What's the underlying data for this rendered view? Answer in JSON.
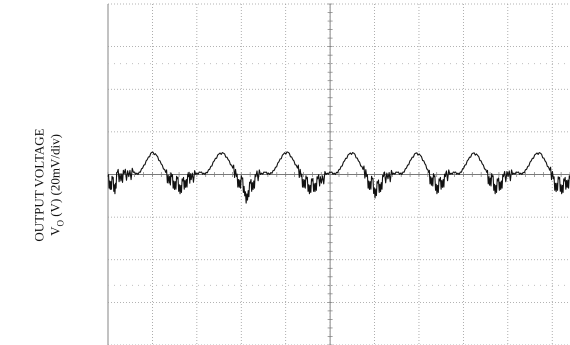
{
  "chart_data": {
    "type": "line",
    "title": "",
    "ylabel_line1": "OUTPUT VOLTAGE",
    "ylabel_line2": "V",
    "ylabel_line2_sub": "O",
    "ylabel_line2_rest": " (V) (20mV/div)",
    "xlabel": "",
    "grid": true,
    "x_divisions": 10,
    "y_divisions": 8,
    "x_unit": "div",
    "y_unit": "div",
    "ylim": [
      -4,
      4
    ],
    "xlim": [
      0,
      10
    ],
    "series": [
      {
        "values_div": [
          [
            0.0,
            -0.05
          ],
          [
            0.05,
            -0.35
          ],
          [
            0.1,
            -0.1
          ],
          [
            0.15,
            -0.45
          ],
          [
            0.2,
            0.05
          ],
          [
            0.28,
            -0.15
          ],
          [
            0.35,
            0.02
          ],
          [
            0.45,
            -0.05
          ],
          [
            0.55,
            0.05
          ],
          [
            0.65,
            0.0
          ],
          [
            0.75,
            0.15
          ],
          [
            0.85,
            0.35
          ],
          [
            0.95,
            0.52
          ],
          [
            1.05,
            0.45
          ],
          [
            1.15,
            0.25
          ],
          [
            1.25,
            0.05
          ],
          [
            1.32,
            -0.2
          ],
          [
            1.38,
            -0.05
          ],
          [
            1.44,
            -0.35
          ],
          [
            1.5,
            -0.1
          ],
          [
            1.56,
            -0.45
          ],
          [
            1.62,
            -0.15
          ],
          [
            1.68,
            -0.3
          ],
          [
            1.74,
            -0.05
          ],
          [
            1.8,
            -0.12
          ],
          [
            1.9,
            0.0
          ],
          [
            2.0,
            0.05
          ],
          [
            2.1,
            0.0
          ],
          [
            2.2,
            0.12
          ],
          [
            2.3,
            0.32
          ],
          [
            2.4,
            0.48
          ],
          [
            2.5,
            0.5
          ],
          [
            2.6,
            0.35
          ],
          [
            2.7,
            0.15
          ],
          [
            2.78,
            -0.05
          ],
          [
            2.84,
            -0.3
          ],
          [
            2.9,
            -0.1
          ],
          [
            2.96,
            -0.5
          ],
          [
            3.02,
            -0.6
          ],
          [
            3.08,
            -0.2
          ],
          [
            3.14,
            -0.35
          ],
          [
            3.2,
            -0.05
          ],
          [
            3.3,
            0.0
          ],
          [
            3.4,
            0.05
          ],
          [
            3.5,
            0.0
          ],
          [
            3.6,
            0.1
          ],
          [
            3.7,
            0.3
          ],
          [
            3.8,
            0.48
          ],
          [
            3.9,
            0.52
          ],
          [
            4.0,
            0.35
          ],
          [
            4.1,
            0.15
          ],
          [
            4.18,
            -0.05
          ],
          [
            4.24,
            -0.3
          ],
          [
            4.3,
            -0.1
          ],
          [
            4.36,
            -0.45
          ],
          [
            4.42,
            -0.15
          ],
          [
            4.48,
            -0.4
          ],
          [
            4.54,
            -0.1
          ],
          [
            4.62,
            -0.2
          ],
          [
            4.72,
            0.0
          ],
          [
            4.82,
            0.05
          ],
          [
            4.92,
            0.0
          ],
          [
            5.02,
            0.12
          ],
          [
            5.12,
            0.32
          ],
          [
            5.22,
            0.48
          ],
          [
            5.32,
            0.5
          ],
          [
            5.42,
            0.32
          ],
          [
            5.52,
            0.12
          ],
          [
            5.6,
            -0.05
          ],
          [
            5.66,
            -0.35
          ],
          [
            5.72,
            -0.1
          ],
          [
            5.78,
            -0.55
          ],
          [
            5.84,
            -0.2
          ],
          [
            5.9,
            -0.4
          ],
          [
            5.96,
            -0.05
          ],
          [
            6.06,
            -0.1
          ],
          [
            6.16,
            0.0
          ],
          [
            6.26,
            0.05
          ],
          [
            6.36,
            0.0
          ],
          [
            6.46,
            0.15
          ],
          [
            6.56,
            0.35
          ],
          [
            6.66,
            0.5
          ],
          [
            6.76,
            0.45
          ],
          [
            6.86,
            0.25
          ],
          [
            6.94,
            0.05
          ],
          [
            7.0,
            -0.25
          ],
          [
            7.06,
            -0.05
          ],
          [
            7.12,
            -0.45
          ],
          [
            7.18,
            -0.15
          ],
          [
            7.24,
            -0.3
          ],
          [
            7.3,
            -0.05
          ],
          [
            7.4,
            0.0
          ],
          [
            7.5,
            0.05
          ],
          [
            7.6,
            0.0
          ],
          [
            7.7,
            0.15
          ],
          [
            7.8,
            0.35
          ],
          [
            7.9,
            0.5
          ],
          [
            8.0,
            0.45
          ],
          [
            8.1,
            0.25
          ],
          [
            8.2,
            0.05
          ],
          [
            8.26,
            -0.25
          ],
          [
            8.32,
            -0.05
          ],
          [
            8.38,
            -0.45
          ],
          [
            8.44,
            -0.15
          ],
          [
            8.5,
            -0.35
          ],
          [
            8.56,
            -0.05
          ],
          [
            8.66,
            -0.05
          ],
          [
            8.76,
            0.0
          ],
          [
            8.86,
            0.05
          ],
          [
            8.96,
            0.0
          ],
          [
            9.06,
            0.12
          ],
          [
            9.16,
            0.32
          ],
          [
            9.26,
            0.48
          ],
          [
            9.36,
            0.5
          ],
          [
            9.46,
            0.32
          ],
          [
            9.56,
            0.1
          ],
          [
            9.64,
            -0.1
          ],
          [
            9.7,
            -0.4
          ],
          [
            9.76,
            -0.1
          ],
          [
            9.82,
            -0.45
          ],
          [
            9.88,
            -0.15
          ],
          [
            9.94,
            -0.3
          ],
          [
            10.0,
            -0.1
          ]
        ]
      }
    ]
  }
}
